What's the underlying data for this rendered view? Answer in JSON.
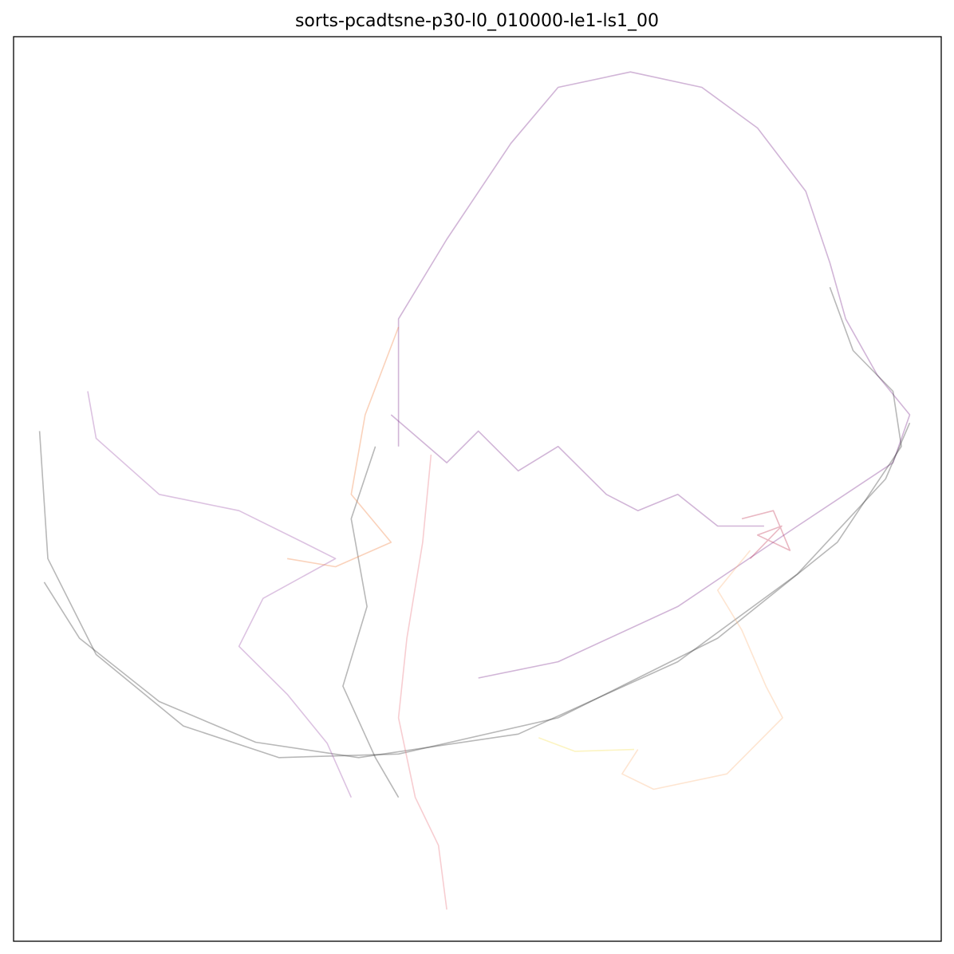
{
  "chart_data": {
    "type": "line",
    "title": "sorts-pcadtsne-p30-l0_010000-le1-ls1_00",
    "xlim": [
      0,
      100
    ],
    "ylim": [
      0,
      100
    ],
    "series": [
      {
        "color": "#7b2a8c",
        "x": [
          41.5,
          41.5,
          46.7,
          53.6,
          58.7,
          66.5,
          74.2,
          80.2,
          85.4,
          88.0,
          89.7,
          93.1,
          96.6,
          94.8,
          84.5,
          71.6,
          58.7,
          50.1
        ],
        "values": [
          54.7,
          68.8,
          77.6,
          88.2,
          94.4,
          96.1,
          94.4,
          89.9,
          82.9,
          75.0,
          68.8,
          62.6,
          58.2,
          52.9,
          45.9,
          37.0,
          30.9,
          29.1
        ]
      },
      {
        "color": "#333333",
        "x": [
          2.8,
          3.7,
          8.9,
          18.3,
          28.6,
          41.5,
          58.7,
          75.9,
          88.8,
          95.7,
          94.8,
          90.5,
          88.0
        ],
        "values": [
          56.4,
          42.3,
          31.7,
          23.8,
          20.3,
          20.7,
          24.7,
          33.5,
          44.1,
          54.7,
          60.8,
          65.3,
          72.3
        ]
      },
      {
        "color": "#333333",
        "x": [
          3.3,
          7.1,
          15.7,
          26.1,
          37.2,
          54.4,
          71.6,
          84.5,
          94.0,
          96.6
        ],
        "values": [
          39.7,
          33.5,
          26.5,
          22.0,
          20.3,
          22.9,
          30.9,
          40.6,
          51.1,
          57.3
        ]
      },
      {
        "color": "#fbb57a",
        "x": [
          67.3,
          65.6,
          69.0,
          76.9,
          82.9,
          81.1,
          78.5,
          75.9,
          79.4
        ],
        "values": [
          21.2,
          18.5,
          16.8,
          18.5,
          24.7,
          28.2,
          34.4,
          38.8,
          43.2
        ]
      },
      {
        "color": "#f5e050",
        "x": [
          56.6,
          60.5,
          66.9
        ],
        "values": [
          22.5,
          21.0,
          21.2
        ]
      },
      {
        "color": "#7b2a8c",
        "x": [
          40.7,
          46.7,
          50.1,
          54.4,
          58.7,
          63.9,
          67.3,
          71.6,
          75.9,
          80.9
        ],
        "values": [
          58.2,
          52.9,
          56.4,
          52.0,
          54.7,
          49.4,
          47.6,
          49.4,
          45.9,
          45.9
        ]
      },
      {
        "color": "#9b4fa8",
        "x": [
          8.0,
          8.9,
          15.7,
          24.3,
          31.2,
          34.7,
          26.9,
          24.3,
          29.5,
          33.8,
          36.4
        ],
        "values": [
          60.8,
          55.6,
          49.4,
          47.6,
          44.1,
          42.3,
          37.9,
          32.6,
          27.3,
          21.9,
          15.9
        ]
      },
      {
        "color": "#e8707a",
        "x": [
          45.0,
          44.1,
          42.4,
          41.5,
          43.3,
          45.8,
          46.7
        ],
        "values": [
          53.8,
          44.1,
          33.5,
          24.7,
          15.9,
          10.6,
          3.5
        ]
      },
      {
        "color": "#333333",
        "x": [
          39.0,
          36.4,
          38.1,
          35.5,
          39.0,
          41.5
        ],
        "values": [
          54.7,
          46.7,
          37.0,
          28.2,
          20.3,
          15.9
        ]
      },
      {
        "color": "#f07f3c",
        "x": [
          41.5,
          37.9,
          36.4,
          40.7,
          34.7,
          29.5
        ],
        "values": [
          67.9,
          58.2,
          49.4,
          44.1,
          41.4,
          42.3
        ]
      },
      {
        "color": "#c0304f",
        "x": [
          78.5,
          81.9,
          83.7,
          80.2,
          82.8,
          79.4
        ],
        "values": [
          46.7,
          47.6,
          43.2,
          44.9,
          45.9,
          42.3
        ]
      }
    ]
  }
}
